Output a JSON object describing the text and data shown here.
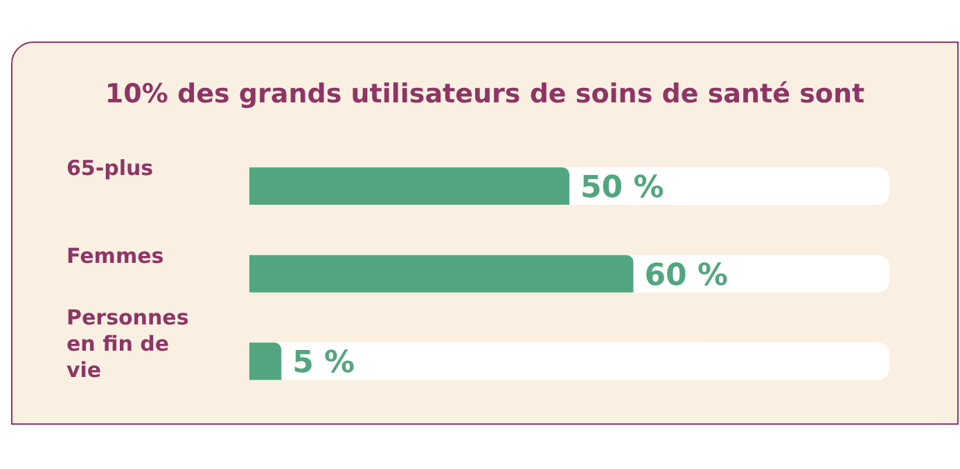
{
  "chart_data": {
    "type": "bar",
    "orientation": "horizontal",
    "title": "10% des grands utilisateurs de soins de santé sont",
    "categories": [
      "65-plus",
      "Femmes",
      "Personnes en fin de vie"
    ],
    "values": [
      50,
      60,
      5
    ],
    "color": "#52a67f",
    "value_labels": [
      "50 %",
      "60 %",
      "5 %"
    ],
    "xlim": [
      0,
      100
    ],
    "tick_labels": "y"
  }
}
